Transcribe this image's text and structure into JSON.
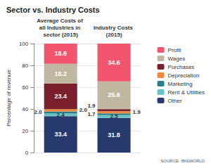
{
  "chart_data": {
    "type": "bar",
    "title": "Sector vs. Industry Costs",
    "annotations": [
      "SOURCE: IBISWORLD"
    ],
    "ylabel": "Percentage of revenue",
    "categories": [
      "Average Costs of all Industries in sector (2015)",
      "Industry Costs (2015)"
    ],
    "stacked": true,
    "data_labels": true,
    "grid": true,
    "legend": "top-right",
    "ylim": [
      0,
      100
    ],
    "yticks": [
      0,
      20,
      40,
      60,
      80,
      100
    ],
    "series": [
      {
        "name": "Other",
        "color": "#263a6e",
        "values": [
          33.4,
          31.8
        ],
        "value_labels": [
          "33.4",
          "31.8"
        ]
      },
      {
        "name": "Rent & Utilities",
        "color": "#67c3c4",
        "values": [
          2.4,
          2.5
        ],
        "value_labels": [
          "2.4",
          "2.5"
        ]
      },
      {
        "name": "Marketing",
        "color": "#2b7f8c",
        "values": [
          2.0,
          1.7
        ],
        "value_labels": [
          "2.0",
          "1.7"
        ]
      },
      {
        "name": "Depreciation",
        "color": "#f28a3c",
        "values": [
          2.0,
          1.9
        ],
        "value_labels": [
          "2.0",
          "1.9"
        ]
      },
      {
        "name": "Purchases",
        "color": "#7b1e2c",
        "values": [
          23.4,
          1.9
        ],
        "value_labels": [
          "23.4",
          "1.9"
        ]
      },
      {
        "name": "Wages",
        "color": "#bfb7a0",
        "values": [
          18.2,
          25.6
        ],
        "value_labels": [
          "18.2",
          "25.6"
        ]
      },
      {
        "name": "Profit",
        "color": "#f2566f",
        "values": [
          18.6,
          34.6
        ],
        "value_labels": [
          "18.6",
          "34.6"
        ]
      }
    ]
  }
}
